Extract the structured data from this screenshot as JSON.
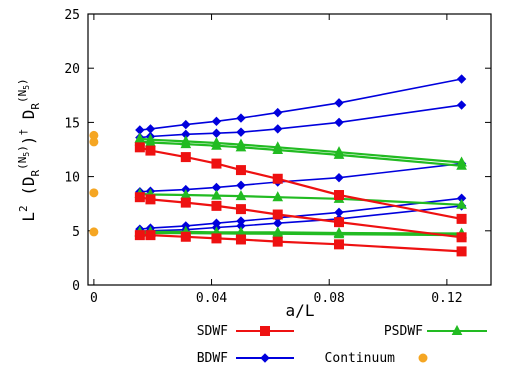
{
  "chart_data": {
    "type": "line",
    "title": "",
    "xlabel": "a/L",
    "ylabel": "L2 (DR(N5))† DR(N5)",
    "xlim": [
      -0.002,
      0.135
    ],
    "ylim": [
      0,
      25
    ],
    "xticks": [
      0,
      0.04,
      0.08,
      0.12
    ],
    "xtick_labels": [
      "0",
      "0.04",
      "0.08",
      "0.12"
    ],
    "yticks": [
      0,
      5,
      10,
      15,
      20,
      25
    ],
    "ytick_labels": [
      "0",
      "5",
      "10",
      "15",
      "20",
      "25"
    ],
    "grid": false,
    "legend_position": "bottom",
    "x": [
      0.015625,
      0.01923,
      0.03125,
      0.04167,
      0.05,
      0.0625,
      0.08333,
      0.125
    ],
    "series": [
      {
        "name": "BDWF",
        "group": "BDWF",
        "color": "#0000dd",
        "marker": "diamond",
        "values": [
          14.3,
          14.4,
          14.8,
          15.1,
          15.4,
          15.9,
          16.8,
          19.0
        ]
      },
      {
        "name": "",
        "group": "BDWF",
        "color": "#0000dd",
        "marker": "diamond",
        "values": [
          13.6,
          13.7,
          13.9,
          14.0,
          14.1,
          14.4,
          15.0,
          16.6
        ]
      },
      {
        "name": "",
        "group": "BDWF",
        "color": "#0000dd",
        "marker": "diamond",
        "values": [
          8.6,
          8.65,
          8.8,
          9.0,
          9.2,
          9.5,
          9.9,
          11.2
        ]
      },
      {
        "name": "",
        "group": "BDWF",
        "color": "#0000dd",
        "marker": "diamond",
        "values": [
          5.15,
          5.25,
          5.45,
          5.7,
          5.9,
          6.2,
          6.7,
          8.0
        ]
      },
      {
        "name": "",
        "group": "BDWF",
        "color": "#0000dd",
        "marker": "diamond",
        "values": [
          4.95,
          5.0,
          5.1,
          5.3,
          5.45,
          5.7,
          6.1,
          7.3
        ]
      },
      {
        "name": "PSDWF",
        "group": "PSDWF",
        "color": "#22bb22",
        "marker": "triangle",
        "values": [
          13.5,
          13.4,
          13.25,
          13.1,
          12.95,
          12.7,
          12.25,
          11.3
        ]
      },
      {
        "name": "",
        "group": "PSDWF",
        "color": "#22bb22",
        "marker": "triangle",
        "values": [
          13.25,
          13.15,
          13.0,
          12.85,
          12.7,
          12.45,
          12.0,
          11.0
        ]
      },
      {
        "name": "",
        "group": "PSDWF",
        "color": "#22bb22",
        "marker": "triangle",
        "values": [
          8.4,
          8.35,
          8.3,
          8.25,
          8.2,
          8.1,
          7.95,
          7.4
        ]
      },
      {
        "name": "",
        "group": "PSDWF",
        "color": "#22bb22",
        "marker": "triangle",
        "values": [
          4.9,
          4.9,
          4.9,
          4.85,
          4.85,
          4.85,
          4.8,
          4.75
        ]
      },
      {
        "name": "",
        "group": "PSDWF",
        "color": "#22bb22",
        "marker": "triangle",
        "values": [
          4.8,
          4.8,
          4.78,
          4.76,
          4.74,
          4.72,
          4.68,
          4.6
        ]
      },
      {
        "name": "SDWF",
        "group": "SDWF",
        "color": "#ee1111",
        "marker": "square",
        "values": [
          12.7,
          12.4,
          11.8,
          11.2,
          10.6,
          9.8,
          8.3,
          6.1
        ]
      },
      {
        "name": "",
        "group": "SDWF",
        "color": "#ee1111",
        "marker": "square",
        "values": [
          8.1,
          7.9,
          7.6,
          7.3,
          7.0,
          6.5,
          5.8,
          4.4
        ]
      },
      {
        "name": "",
        "group": "SDWF",
        "color": "#ee1111",
        "marker": "square",
        "values": [
          4.6,
          4.6,
          4.45,
          4.3,
          4.2,
          4.0,
          3.75,
          3.1
        ]
      }
    ],
    "continuum": {
      "name": "Continuum",
      "color": "#f5a623",
      "x": [
        0,
        0,
        0,
        0
      ],
      "values": [
        13.8,
        13.2,
        8.5,
        4.9
      ]
    },
    "legend": [
      {
        "label": "SDWF",
        "color": "#ee1111",
        "marker": "square"
      },
      {
        "label": "PSDWF",
        "color": "#22bb22",
        "marker": "triangle"
      },
      {
        "label": "BDWF",
        "color": "#0000dd",
        "marker": "diamond"
      },
      {
        "label": "Continuum",
        "color": "#f5a623",
        "marker": "circle"
      }
    ]
  }
}
